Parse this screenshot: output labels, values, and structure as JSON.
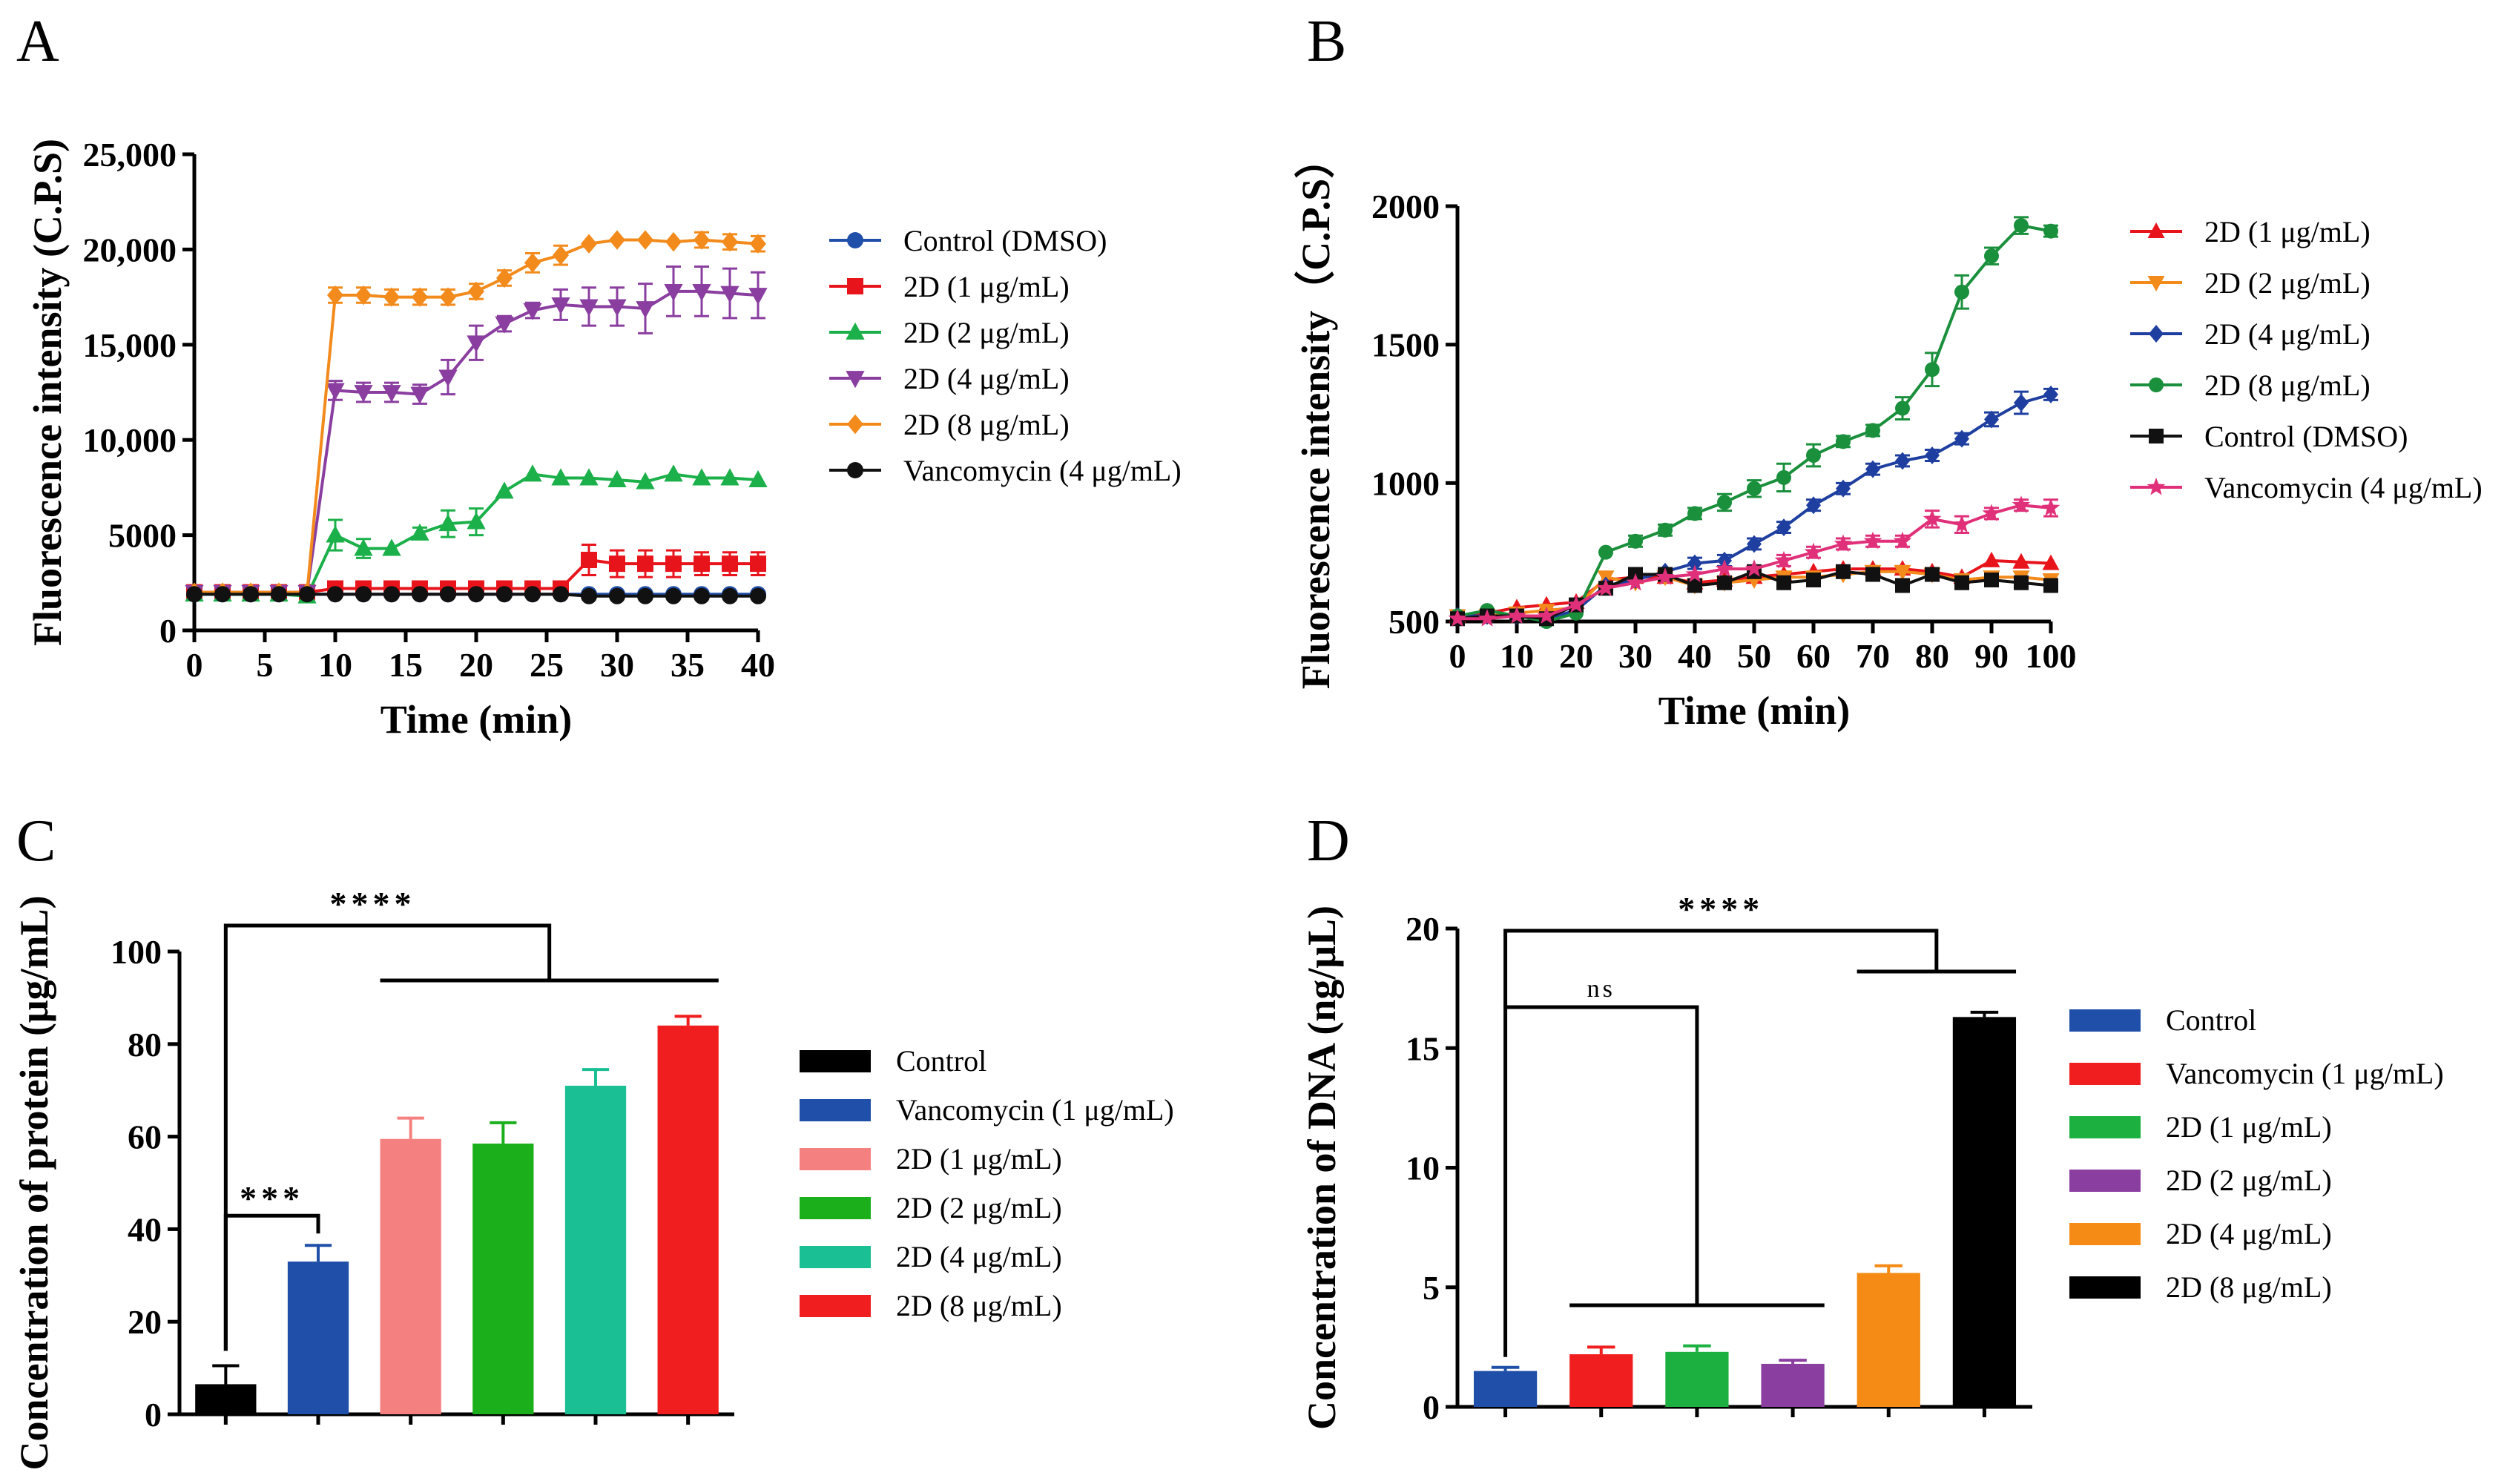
{
  "chart_data": [
    {
      "panel": "A",
      "type": "line",
      "xlabel": "Time (min)",
      "ylabel": "Fluorescence intensity (C.P.S)",
      "xlim": [
        0,
        40
      ],
      "ylim": [
        0,
        25000
      ],
      "xticks": [
        0,
        5,
        10,
        15,
        20,
        25,
        30,
        35,
        40
      ],
      "yticks": [
        0,
        5000,
        10000,
        15000,
        20000,
        25000
      ],
      "ytick_labels": [
        "0",
        "5000",
        "10,000",
        "15,000",
        "20,000",
        "25,000"
      ],
      "legend_position": "right",
      "series": [
        {
          "name": "Control (DMSO)",
          "color": "#1f4fa8",
          "marker": "circle",
          "x": [
            0,
            2,
            4,
            6,
            8,
            10,
            12,
            14,
            16,
            18,
            20,
            22,
            24,
            26,
            28,
            30,
            32,
            34,
            36,
            38,
            40
          ],
          "y": [
            1900,
            1900,
            1900,
            1900,
            1900,
            1900,
            1900,
            1900,
            1900,
            1900,
            1900,
            1900,
            1900,
            1900,
            1900,
            1900,
            1900,
            1900,
            1900,
            1900,
            1900
          ],
          "err": [
            0,
            0,
            0,
            0,
            0,
            0,
            0,
            0,
            0,
            0,
            0,
            0,
            0,
            0,
            0,
            0,
            0,
            0,
            0,
            0,
            0
          ]
        },
        {
          "name": "2D (1 μg/mL)",
          "color": "#e8141c",
          "marker": "square",
          "x": [
            0,
            2,
            4,
            6,
            8,
            10,
            12,
            14,
            16,
            18,
            20,
            22,
            24,
            26,
            28,
            30,
            32,
            34,
            36,
            38,
            40
          ],
          "y": [
            2000,
            2000,
            2000,
            2000,
            2000,
            2200,
            2200,
            2200,
            2200,
            2200,
            2200,
            2200,
            2200,
            2200,
            3700,
            3500,
            3500,
            3500,
            3500,
            3500,
            3500
          ],
          "err": [
            0,
            0,
            0,
            0,
            0,
            0,
            0,
            0,
            0,
            0,
            0,
            0,
            0,
            0,
            800,
            700,
            700,
            700,
            600,
            600,
            600
          ]
        },
        {
          "name": "2D (2 μg/mL)",
          "color": "#1bb04a",
          "marker": "triangle-up",
          "x": [
            0,
            2,
            4,
            6,
            8,
            10,
            12,
            14,
            16,
            18,
            20,
            22,
            24,
            26,
            28,
            30,
            32,
            34,
            36,
            38,
            40
          ],
          "y": [
            1900,
            1900,
            1900,
            1900,
            1800,
            5000,
            4300,
            4300,
            5100,
            5600,
            5700,
            7300,
            8200,
            8000,
            8000,
            7900,
            7800,
            8200,
            8000,
            8000,
            7900
          ],
          "err": [
            0,
            0,
            0,
            0,
            0,
            800,
            500,
            0,
            300,
            700,
            700,
            0,
            0,
            0,
            0,
            0,
            0,
            0,
            0,
            0,
            0
          ]
        },
        {
          "name": "2D (4 μg/mL)",
          "color": "#8a3ea0",
          "marker": "triangle-down",
          "x": [
            0,
            2,
            4,
            6,
            8,
            10,
            12,
            14,
            16,
            18,
            20,
            22,
            24,
            26,
            28,
            30,
            32,
            34,
            36,
            38,
            40
          ],
          "y": [
            2000,
            2000,
            2000,
            2000,
            2000,
            12600,
            12500,
            12500,
            12400,
            13300,
            15100,
            16100,
            16800,
            17100,
            17000,
            17000,
            16900,
            17800,
            17800,
            17700,
            17600
          ],
          "err": [
            0,
            0,
            0,
            0,
            0,
            500,
            500,
            500,
            500,
            900,
            900,
            400,
            400,
            800,
            1000,
            1000,
            1300,
            1300,
            1300,
            1300,
            1200
          ]
        },
        {
          "name": "2D (8 μg/mL)",
          "color": "#f28a1c",
          "marker": "diamond",
          "x": [
            0,
            2,
            4,
            6,
            8,
            10,
            12,
            14,
            16,
            18,
            20,
            22,
            24,
            26,
            28,
            30,
            32,
            34,
            36,
            38,
            40
          ],
          "y": [
            2000,
            2000,
            2000,
            2000,
            2000,
            17600,
            17600,
            17500,
            17500,
            17500,
            17800,
            18500,
            19300,
            19700,
            20300,
            20500,
            20500,
            20400,
            20500,
            20400,
            20300
          ],
          "err": [
            0,
            0,
            0,
            0,
            0,
            400,
            400,
            400,
            400,
            400,
            400,
            400,
            500,
            500,
            0,
            0,
            0,
            0,
            400,
            400,
            400
          ]
        },
        {
          "name": "Vancomycin (4 μg/mL)",
          "color": "#111111",
          "marker": "circle",
          "x": [
            0,
            2,
            4,
            6,
            8,
            10,
            12,
            14,
            16,
            18,
            20,
            22,
            24,
            26,
            28,
            30,
            32,
            34,
            36,
            38,
            40
          ],
          "y": [
            1900,
            1900,
            1900,
            1900,
            1900,
            1900,
            1900,
            1900,
            1900,
            1900,
            1900,
            1900,
            1900,
            1900,
            1800,
            1800,
            1800,
            1800,
            1800,
            1800,
            1800
          ],
          "err": [
            0,
            0,
            0,
            0,
            0,
            0,
            0,
            0,
            0,
            0,
            0,
            0,
            0,
            0,
            0,
            0,
            0,
            0,
            0,
            0,
            0
          ]
        }
      ]
    },
    {
      "panel": "B",
      "type": "line",
      "xlabel": "Time (min)",
      "ylabel": "Fluorescence intensity（C.P.S）",
      "xlim": [
        0,
        100
      ],
      "ylim": [
        500,
        2000
      ],
      "xticks": [
        0,
        10,
        20,
        30,
        40,
        50,
        60,
        70,
        80,
        90,
        100
      ],
      "yticks": [
        500,
        1000,
        1500,
        2000
      ],
      "ytick_labels": [
        "500",
        "1000",
        "1500",
        "2000"
      ],
      "legend_position": "right",
      "series": [
        {
          "name": "2D (1 μg/mL)",
          "color": "#e8141c",
          "marker": "triangle-up",
          "x": [
            0,
            5,
            10,
            15,
            20,
            25,
            30,
            35,
            40,
            45,
            50,
            55,
            60,
            65,
            70,
            75,
            80,
            85,
            90,
            95,
            100
          ],
          "y": [
            520,
            530,
            550,
            560,
            570,
            650,
            660,
            660,
            640,
            650,
            660,
            670,
            680,
            690,
            690,
            690,
            680,
            660,
            720,
            715,
            710
          ],
          "err": [
            0,
            0,
            0,
            0,
            0,
            0,
            0,
            0,
            0,
            0,
            0,
            0,
            0,
            0,
            0,
            0,
            0,
            0,
            0,
            0,
            0
          ]
        },
        {
          "name": "2D (2 μg/mL)",
          "color": "#f28a1c",
          "marker": "triangle-down",
          "x": [
            0,
            5,
            10,
            15,
            20,
            25,
            30,
            35,
            40,
            45,
            50,
            55,
            60,
            65,
            70,
            75,
            80,
            85,
            90,
            95,
            100
          ],
          "y": [
            520,
            520,
            530,
            540,
            550,
            660,
            640,
            660,
            630,
            640,
            650,
            660,
            660,
            670,
            680,
            680,
            670,
            650,
            660,
            660,
            650
          ],
          "err": [
            0,
            0,
            0,
            0,
            0,
            0,
            0,
            0,
            0,
            0,
            0,
            0,
            0,
            0,
            0,
            0,
            0,
            0,
            0,
            0,
            0
          ]
        },
        {
          "name": "2D (4 μg/mL)",
          "color": "#1f3fa0",
          "marker": "diamond",
          "x": [
            0,
            5,
            10,
            15,
            20,
            25,
            30,
            35,
            40,
            45,
            50,
            55,
            60,
            65,
            70,
            75,
            80,
            85,
            90,
            95,
            100
          ],
          "y": [
            520,
            520,
            520,
            510,
            540,
            630,
            650,
            680,
            710,
            720,
            780,
            840,
            920,
            980,
            1050,
            1080,
            1100,
            1160,
            1230,
            1290,
            1320
          ],
          "err": [
            0,
            0,
            0,
            0,
            0,
            0,
            0,
            0,
            20,
            20,
            20,
            20,
            20,
            20,
            20,
            20,
            20,
            20,
            25,
            40,
            20
          ]
        },
        {
          "name": "2D (8 μg/mL)",
          "color": "#1a8f3c",
          "marker": "circle",
          "x": [
            0,
            5,
            10,
            15,
            20,
            25,
            30,
            35,
            40,
            45,
            50,
            55,
            60,
            65,
            70,
            75,
            80,
            85,
            90,
            95,
            100
          ],
          "y": [
            520,
            540,
            520,
            500,
            530,
            750,
            790,
            830,
            890,
            930,
            980,
            1020,
            1100,
            1150,
            1190,
            1270,
            1410,
            1690,
            1820,
            1930,
            1910
          ],
          "err": [
            0,
            0,
            0,
            0,
            0,
            0,
            20,
            20,
            20,
            30,
            30,
            50,
            40,
            20,
            20,
            40,
            60,
            60,
            30,
            30,
            20
          ]
        },
        {
          "name": "Control (DMSO)",
          "color": "#111111",
          "marker": "square",
          "x": [
            0,
            5,
            10,
            15,
            20,
            25,
            30,
            35,
            40,
            45,
            50,
            55,
            60,
            65,
            70,
            75,
            80,
            85,
            90,
            95,
            100
          ],
          "y": [
            510,
            520,
            520,
            510,
            560,
            620,
            670,
            670,
            630,
            640,
            680,
            640,
            650,
            680,
            670,
            630,
            670,
            640,
            650,
            640,
            630
          ],
          "err": [
            0,
            0,
            0,
            0,
            0,
            0,
            0,
            0,
            0,
            0,
            0,
            0,
            0,
            0,
            0,
            0,
            0,
            0,
            0,
            0,
            0
          ]
        },
        {
          "name": "Vancomycin (4 μg/mL)",
          "color": "#e0307a",
          "marker": "star",
          "x": [
            0,
            5,
            10,
            15,
            20,
            25,
            30,
            35,
            40,
            45,
            50,
            55,
            60,
            65,
            70,
            75,
            80,
            85,
            90,
            95,
            100
          ],
          "y": [
            510,
            510,
            520,
            520,
            560,
            620,
            640,
            660,
            670,
            690,
            690,
            720,
            750,
            780,
            790,
            790,
            870,
            850,
            890,
            920,
            910
          ],
          "err": [
            0,
            0,
            0,
            0,
            0,
            0,
            0,
            0,
            0,
            0,
            0,
            20,
            20,
            20,
            20,
            20,
            30,
            30,
            20,
            20,
            30
          ]
        }
      ]
    },
    {
      "panel": "C",
      "type": "bar",
      "xlabel": "",
      "ylabel": "Concentration of protein (μg/mL)",
      "ylim": [
        0,
        100
      ],
      "yticks": [
        0,
        20,
        40,
        60,
        80,
        100
      ],
      "categories": [
        "Control",
        "Vancomycin (1 μg/mL)",
        "2D (1 μg/mL)",
        "2D (2 μg/mL)",
        "2D (4 μg/mL)",
        "2D (8 μg/mL)"
      ],
      "values": [
        6.5,
        33,
        59.5,
        58.5,
        71,
        84
      ],
      "errors": [
        4,
        3.5,
        4.5,
        4.5,
        3.5,
        2
      ],
      "colors": [
        "#000000",
        "#1f4fa8",
        "#f58080",
        "#1bb01b",
        "#1abf94",
        "#f01e1e"
      ],
      "legend_position": "right",
      "annotations": [
        {
          "label": "***",
          "between": [
            "Control",
            "Vancomycin (1 μg/mL)"
          ]
        },
        {
          "label": "****",
          "between": [
            "Control",
            "2D (1 μg/mL) – 2D (8 μg/mL)"
          ]
        }
      ]
    },
    {
      "panel": "D",
      "type": "bar",
      "xlabel": "",
      "ylabel": "Concentration of DNA (ng/μL)",
      "ylim": [
        0,
        20
      ],
      "yticks": [
        0,
        5,
        10,
        15,
        20
      ],
      "categories": [
        "Control",
        "Vancomycin (1 μg/mL)",
        "2D (1 μg/mL)",
        "2D (2 μg/mL)",
        "2D (4 μg/mL)",
        "2D (8 μg/mL)"
      ],
      "values": [
        1.5,
        2.2,
        2.3,
        1.8,
        5.6,
        16.3
      ],
      "errors": [
        0.15,
        0.3,
        0.25,
        0.15,
        0.3,
        0.2
      ],
      "colors": [
        "#1f4fa8",
        "#f01e1e",
        "#1bb040",
        "#8a3ea0",
        "#f58a14",
        "#000000"
      ],
      "legend_position": "right",
      "annotations": [
        {
          "label": "ns",
          "between": [
            "Control",
            "Vancomycin (1 μg/mL) – 2D (2 μg/mL)"
          ]
        },
        {
          "label": "****",
          "between": [
            "Control",
            "2D (4 μg/mL) – 2D (8 μg/mL)"
          ]
        }
      ]
    }
  ]
}
